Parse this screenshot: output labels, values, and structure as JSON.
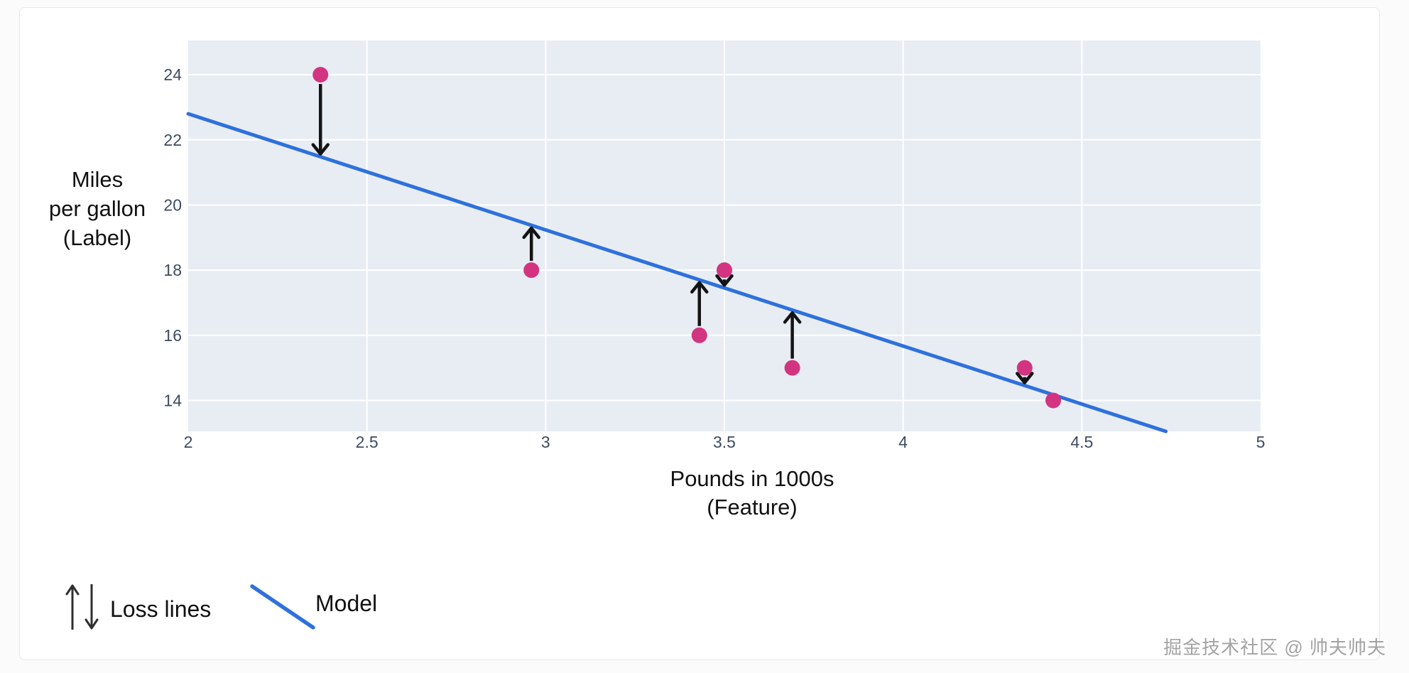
{
  "page": {
    "watermark": "掘金技术社区 @ 帅夫帅夫"
  },
  "chart_data": {
    "type": "scatter",
    "title": "",
    "xlabel_lines": [
      "Pounds in 1000s",
      "(Feature)"
    ],
    "ylabel_lines": [
      "Miles",
      "per gallon",
      "(Label)"
    ],
    "xlabel": "Pounds in 1000s (Feature)",
    "ylabel": "Miles per gallon (Label)",
    "xlim": [
      2,
      5
    ],
    "ylim": [
      13.05,
      25.05
    ],
    "x_tick_values": [
      2,
      2.5,
      3,
      3.5,
      4,
      4.5,
      5
    ],
    "y_tick_values": [
      24,
      22,
      20,
      18,
      16,
      14
    ],
    "grid": "on",
    "points": [
      {
        "x": 2.37,
        "y": 24,
        "loss_arrow": "down"
      },
      {
        "x": 2.96,
        "y": 18,
        "loss_arrow": "up"
      },
      {
        "x": 3.43,
        "y": 16,
        "loss_arrow": "up"
      },
      {
        "x": 3.5,
        "y": 18,
        "loss_arrow": "down"
      },
      {
        "x": 3.69,
        "y": 15,
        "loss_arrow": "up"
      },
      {
        "x": 4.34,
        "y": 15,
        "loss_arrow": "down"
      },
      {
        "x": 4.42,
        "y": 14,
        "loss_arrow": "none"
      }
    ],
    "model_line": {
      "x1": 2,
      "y1": 22.8,
      "x2": 4.735,
      "y2": 13.05
    },
    "legend": {
      "position": "bottom-left",
      "loss_label": "Loss lines",
      "model_label": "Model"
    },
    "colors": {
      "point": "#d23480",
      "model_line": "#2e71dc",
      "arrow": "#141414",
      "plot_bg": "#e8edf4",
      "gridline": "#ffffff",
      "tick_label": "#3e4b63",
      "axis_title": "#111111",
      "watermark": "#a3a3a3",
      "card_bg": "#ffffff",
      "card_border": "#e7e7e7",
      "page_bg": "#fbfbfb"
    }
  }
}
